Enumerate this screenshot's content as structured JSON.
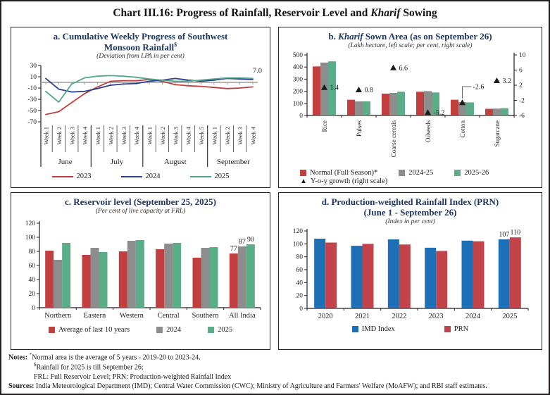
{
  "page_title": {
    "pre": "Chart III.16: Progress of Rainfall, Reservoir Level and ",
    "italic": "Kharif",
    "post": " Sowing"
  },
  "panels": {
    "a": {
      "title1": "a. Cumulative Weekly Progress of Southwest",
      "title2": "Monsoon Rainfall",
      "title2_sup": "$",
      "subtitle": "(Deviation from LPA in per cent)"
    },
    "b": {
      "title_pre": "b. ",
      "title_italic": "Kharif",
      "title_post": " Sown Area (as on September 26)",
      "subtitle": "(Lakh hectare, left scale; per cent, right scale)"
    },
    "c": {
      "title": "c. Reservoir level (September 25, 2025)",
      "subtitle": "(Per cent of live capacity at FRL)"
    },
    "d": {
      "title1": "d. Production-weighted Rainfall Index (PRN)",
      "title2": "(June 1 - September 26)",
      "subtitle": "(Index in per cent)"
    }
  },
  "chart_data": [
    {
      "id": "a",
      "type": "line",
      "title": "a. Cumulative Weekly Progress of Southwest Monsoon Rainfall$",
      "subtitle": "(Deviation from LPA in per cent)",
      "ylim": [
        -70,
        30
      ],
      "yticks": [
        30,
        10,
        -10,
        -30,
        -50,
        -70
      ],
      "grid": false,
      "legend_position": "bottom",
      "months": [
        {
          "name": "June",
          "weeks": [
            "Week 1",
            "Week 2",
            "Week 3",
            "Week 4"
          ]
        },
        {
          "name": "July",
          "weeks": [
            "Week 1",
            "Week 2",
            "Week 3",
            "Week 4"
          ]
        },
        {
          "name": "August",
          "weeks": [
            "Week 1",
            "Week 2",
            "Week 3",
            "Week 4",
            "Week 5"
          ]
        },
        {
          "name": "September",
          "weeks": [
            "Week 1",
            "Week 2",
            "Week 3",
            "Week 4"
          ]
        }
      ],
      "series": [
        {
          "name": "2023",
          "color": "#c13f3f",
          "values": [
            -57,
            -52,
            -36,
            -20,
            -8,
            2,
            3,
            3,
            5,
            2,
            -4,
            -6,
            -7,
            -9,
            -11,
            -10,
            -8
          ]
        },
        {
          "name": "2024",
          "color": "#2b3e90",
          "values": [
            7,
            -12,
            -17,
            -16,
            -11,
            -5,
            -3,
            -2,
            2,
            4,
            7,
            4,
            2,
            4,
            7,
            6,
            5
          ]
        },
        {
          "name": "2025",
          "color": "#53a987",
          "values": [
            -16,
            -35,
            -3,
            8,
            11,
            12,
            11,
            9,
            6,
            4,
            2,
            2,
            4,
            6,
            8,
            8,
            7
          ]
        }
      ],
      "end_label": "7.0"
    },
    {
      "id": "b",
      "type": "bar",
      "title": "b. Kharif Sown Area (as on September 26)",
      "subtitle": "(Lakh hectare, left scale; per cent, right scale)",
      "categories": [
        "Rice",
        "Pulses",
        "Coarse cereals",
        "Oilseeds",
        "Cotton",
        "Sugarcane"
      ],
      "left_axis": {
        "lim": [
          0,
          500
        ],
        "ticks": [
          500,
          400,
          300,
          200,
          100,
          0
        ]
      },
      "right_axis": {
        "lim": [
          -6,
          10
        ],
        "ticks": [
          10,
          6,
          2,
          -2,
          -6
        ]
      },
      "series": [
        {
          "name": "Normal (Full Season)*",
          "color": "#c13f3f",
          "values": [
            405,
            130,
            180,
            196,
            130,
            55
          ]
        },
        {
          "name": "2024-25",
          "color": "#8d8d8d",
          "values": [
            437,
            116,
            186,
            201,
            110,
            57
          ]
        },
        {
          "name": "2025-26",
          "color": "#5aad86",
          "values": [
            447,
            117,
            196,
            190,
            108,
            60
          ]
        }
      ],
      "growth_series": {
        "name": "Y-o-y growth (right scale)",
        "marker": "triangle",
        "color": "#1a1a1a",
        "values": [
          1.4,
          0.8,
          6.6,
          -5.2,
          -2.6,
          3.2
        ]
      }
    },
    {
      "id": "c",
      "type": "bar",
      "title": "c. Reservoir level (September 25, 2025)",
      "subtitle": "(Per cent of live capacity at FRL)",
      "categories": [
        "Northern",
        "Eastern",
        "Western",
        "Central",
        "Southern",
        "All India"
      ],
      "left_axis": {
        "lim": [
          0,
          120
        ],
        "ticks": [
          120,
          100,
          80,
          60,
          40,
          20,
          0
        ]
      },
      "series": [
        {
          "name": "Average of last 10 years",
          "color": "#c13f3f",
          "values": [
            81,
            75,
            80,
            83,
            71,
            77
          ]
        },
        {
          "name": "2024",
          "color": "#8d8d8d",
          "values": [
            68,
            85,
            95,
            91,
            85,
            87
          ]
        },
        {
          "name": "2025",
          "color": "#5aad86",
          "values": [
            92,
            79,
            96,
            92,
            86,
            90
          ]
        }
      ],
      "value_labels": {
        "category": "All India",
        "values": [
          "77",
          "87",
          "90"
        ]
      }
    },
    {
      "id": "d",
      "type": "bar",
      "title": "d. Production-weighted Rainfall Index (PRN) (June 1 - September 26)",
      "subtitle": "(Index in per cent)",
      "categories": [
        "2020",
        "2021",
        "2022",
        "2023",
        "2024",
        "2025"
      ],
      "left_axis": {
        "lim": [
          0,
          120
        ],
        "ticks": [
          120,
          100,
          80,
          60,
          40,
          20,
          0
        ]
      },
      "series": [
        {
          "name": "IMD Index",
          "color": "#1d70b6",
          "values": [
            108,
            97,
            107,
            94,
            105,
            107
          ]
        },
        {
          "name": "PRN",
          "color": "#c2444a",
          "values": [
            102,
            100,
            99,
            89,
            104,
            110
          ]
        }
      ],
      "value_labels": {
        "category": "2025",
        "values": [
          "107",
          "110"
        ]
      }
    }
  ],
  "notes": {
    "label": "Notes:",
    "line1_sup": "*",
    "line1": "Normal area is the average of 5 years - 2019-20 to 2023-24.",
    "line2_sup": "$",
    "line2": "Rainfall for 2025 is till September 26;",
    "line3": "FRL: Full Reservoir Level; PRN: Production-weighted Rainfall Index",
    "sources_label": "Sources:",
    "sources": "India Meteorological Department (IMD); Central Water Commission (CWC); Ministry of Agriculture and Farmers' Welfare (MoAFW); and RBI staff estimates."
  }
}
